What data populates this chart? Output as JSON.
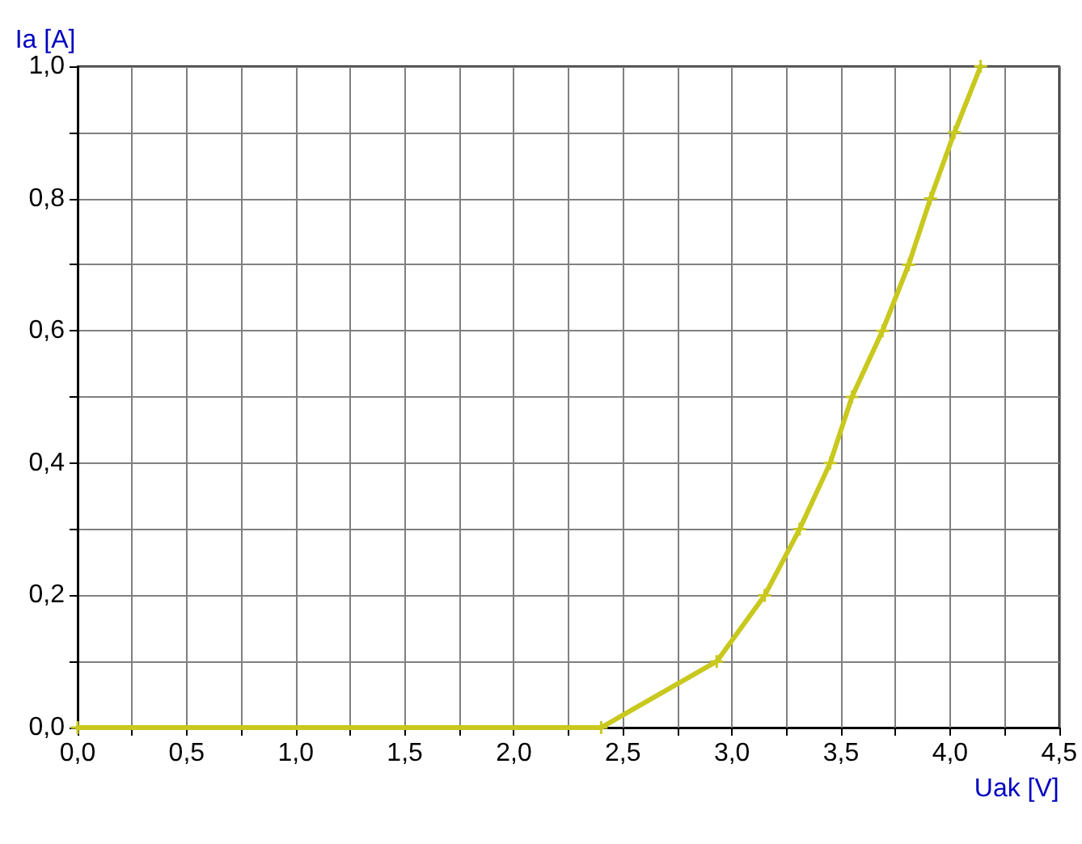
{
  "chart_data": {
    "type": "line",
    "xlabel": "Uak [V]",
    "ylabel": "Ia [A]",
    "x": [
      0,
      2.4,
      2.93,
      3.15,
      3.31,
      3.45,
      3.55,
      3.69,
      3.81,
      3.91,
      4.02,
      4.14
    ],
    "values": [
      0,
      0,
      0.1,
      0.2,
      0.3,
      0.4,
      0.5,
      0.6,
      0.7,
      0.8,
      0.9,
      1.0
    ],
    "color": "#c8c81e",
    "marker": "cross",
    "line_style": "solid",
    "grid": true,
    "xlim": [
      0,
      4.5
    ],
    "ylim": [
      0,
      1.0
    ],
    "xticks": [
      {
        "value": 0,
        "label": "0,0"
      },
      {
        "value": 0.25,
        "label": null
      },
      {
        "value": 0.5,
        "label": "0,5"
      },
      {
        "value": 0.75,
        "label": null
      },
      {
        "value": 1,
        "label": "1,0"
      },
      {
        "value": 1.25,
        "label": null
      },
      {
        "value": 1.5,
        "label": "1,5"
      },
      {
        "value": 1.75,
        "label": null
      },
      {
        "value": 2,
        "label": "2,0"
      },
      {
        "value": 2.25,
        "label": null
      },
      {
        "value": 2.5,
        "label": "2,5"
      },
      {
        "value": 2.75,
        "label": null
      },
      {
        "value": 3,
        "label": "3,0"
      },
      {
        "value": 3.25,
        "label": null
      },
      {
        "value": 3.5,
        "label": "3,5"
      },
      {
        "value": 3.75,
        "label": null
      },
      {
        "value": 4,
        "label": "4,0"
      },
      {
        "value": 4.25,
        "label": null
      },
      {
        "value": 4.5,
        "label": "4,5"
      }
    ],
    "yticks": [
      {
        "value": 0,
        "label": "0,0"
      },
      {
        "value": 0.1,
        "label": null
      },
      {
        "value": 0.2,
        "label": "0,2"
      },
      {
        "value": 0.3,
        "label": null
      },
      {
        "value": 0.4,
        "label": "0,4"
      },
      {
        "value": 0.5,
        "label": null
      },
      {
        "value": 0.6,
        "label": "0,6"
      },
      {
        "value": 0.7,
        "label": null
      },
      {
        "value": 0.8,
        "label": "0,8"
      },
      {
        "value": 0.9,
        "label": null
      },
      {
        "value": 1.0,
        "label": "1,0"
      }
    ]
  }
}
